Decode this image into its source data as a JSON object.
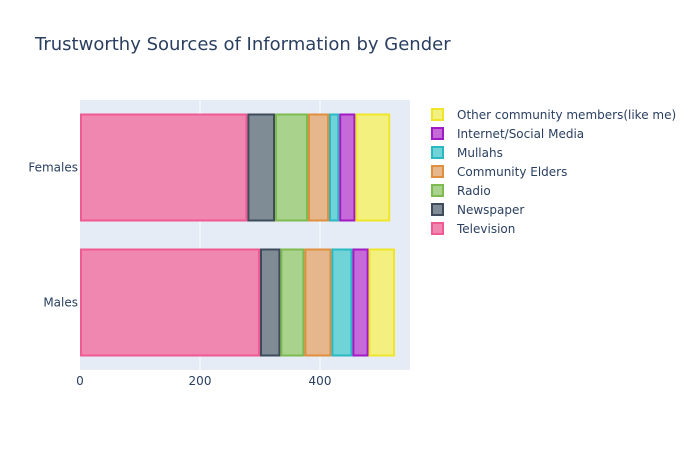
{
  "chart_data": {
    "type": "bar",
    "orientation": "horizontal",
    "barmode": "stack",
    "title": "Trustworthy Sources of Information by Gender",
    "categories": [
      "Males",
      "Females"
    ],
    "x_ticks": [
      "0",
      "200",
      "400"
    ],
    "xlim": [
      0,
      550
    ],
    "grid": true,
    "legend_position": "right",
    "series": [
      {
        "name": "Television",
        "values": [
          300,
          279
        ],
        "fill": "#ef87b0",
        "stroke": "#ef5a92"
      },
      {
        "name": "Newspaper",
        "values": [
          34,
          46
        ],
        "fill": "#7f8b95",
        "stroke": "#3e4b5a"
      },
      {
        "name": "Radio",
        "values": [
          40,
          55
        ],
        "fill": "#a9d38c",
        "stroke": "#7dba4f"
      },
      {
        "name": "Community Elders",
        "values": [
          45,
          35
        ],
        "fill": "#e6b78c",
        "stroke": "#e08f3e"
      },
      {
        "name": "Mullahs",
        "values": [
          35,
          17
        ],
        "fill": "#6fd3d8",
        "stroke": "#2ab9c1"
      },
      {
        "name": "Internet/Social Media",
        "values": [
          27,
          27
        ],
        "fill": "#c56ad8",
        "stroke": "#a11bc4"
      },
      {
        "name": "Other community members(like me)",
        "values": [
          44,
          58
        ],
        "fill": "#f3f07f",
        "stroke": "#efe62a"
      }
    ]
  }
}
